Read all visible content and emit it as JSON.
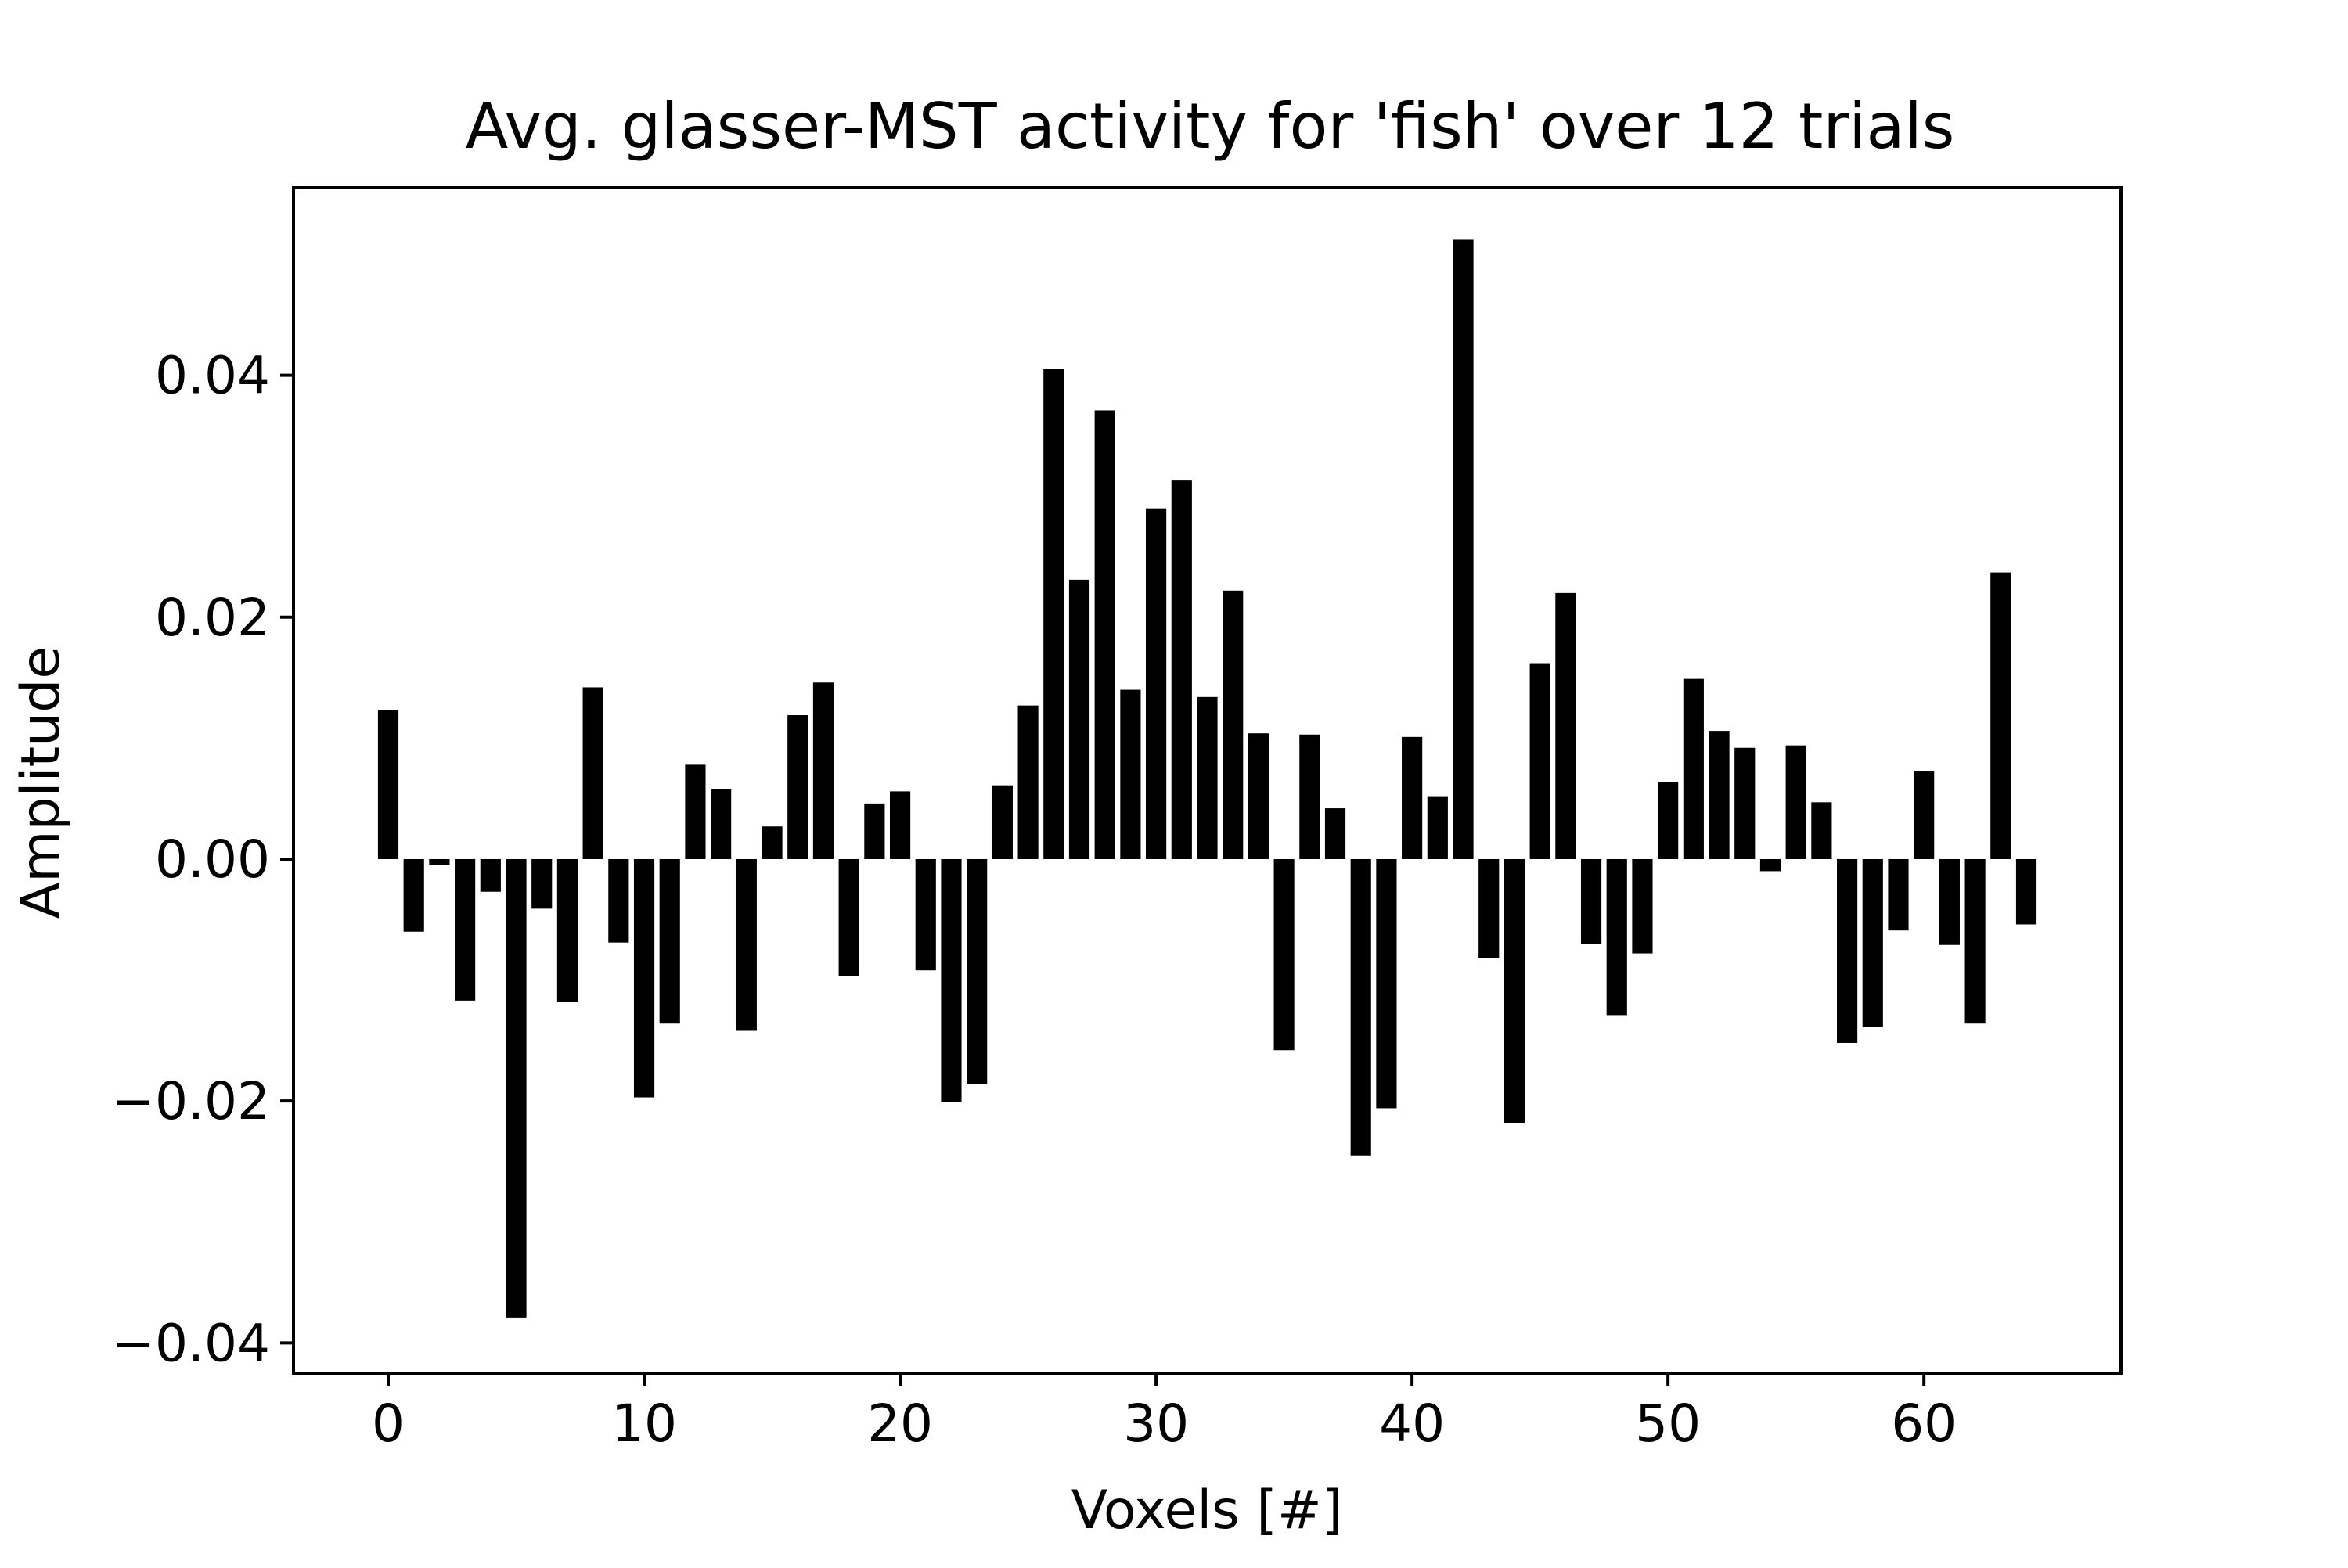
{
  "chart_data": {
    "type": "bar",
    "title": "Avg. glasser-MST activity for 'fish' over 12 trials",
    "xlabel": "Voxels [#]",
    "ylabel": "Amplitude",
    "xlim": [
      -3.7,
      67.7
    ],
    "ylim": [
      -0.0425,
      0.0555
    ],
    "xticks": [
      0,
      10,
      20,
      30,
      40,
      50,
      60
    ],
    "xtick_labels": [
      "0",
      "10",
      "20",
      "30",
      "40",
      "50",
      "60"
    ],
    "yticks": [
      -0.04,
      -0.02,
      0.0,
      0.02,
      0.04
    ],
    "ytick_labels": [
      "−0.04",
      "−0.02",
      "0.00",
      "0.02",
      "0.04"
    ],
    "grid": false,
    "bar_width": 0.8,
    "bar_color": "#000000",
    "x": [
      0,
      1,
      2,
      3,
      4,
      5,
      6,
      7,
      8,
      9,
      10,
      11,
      12,
      13,
      14,
      15,
      16,
      17,
      18,
      19,
      20,
      21,
      22,
      23,
      24,
      25,
      26,
      27,
      28,
      29,
      30,
      31,
      32,
      33,
      34,
      35,
      36,
      37,
      38,
      39,
      40,
      41,
      42,
      43,
      44,
      45,
      46,
      47,
      48,
      49,
      50,
      51,
      52,
      53,
      54,
      55,
      56,
      57,
      58,
      59,
      60,
      61,
      62,
      63,
      64
    ],
    "values": [
      0.0123,
      -0.006,
      -0.0005,
      -0.0117,
      -0.0027,
      -0.0379,
      -0.0041,
      -0.0118,
      0.0142,
      -0.0069,
      -0.0197,
      -0.0136,
      0.0078,
      0.0058,
      -0.0142,
      0.0027,
      0.0119,
      0.0146,
      -0.0097,
      0.0046,
      0.0056,
      -0.0092,
      -0.0201,
      -0.0186,
      0.0061,
      0.0127,
      0.0405,
      0.0231,
      0.0371,
      0.014,
      0.029,
      0.0313,
      0.0134,
      0.0222,
      0.0104,
      -0.0158,
      0.0103,
      0.0042,
      -0.0245,
      -0.0206,
      0.0101,
      0.0052,
      0.0512,
      -0.0082,
      -0.0218,
      0.0162,
      0.022,
      -0.007,
      -0.0129,
      -0.0078,
      0.0064,
      0.0149,
      0.0106,
      0.0092,
      -0.001,
      0.0094,
      0.0047,
      -0.0152,
      -0.0139,
      -0.0059,
      0.0073,
      -0.0071,
      -0.0136,
      0.0237,
      -0.0054
    ]
  }
}
